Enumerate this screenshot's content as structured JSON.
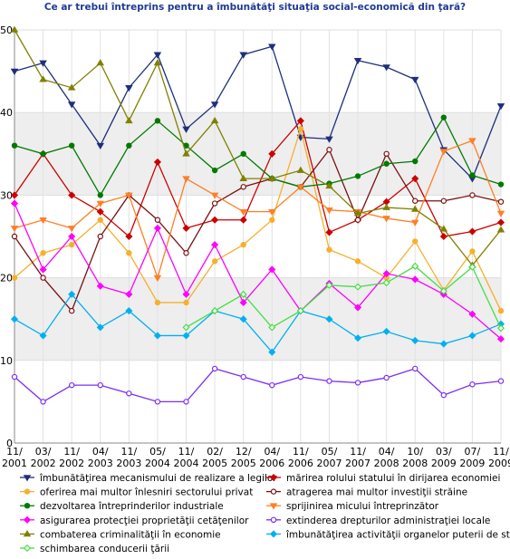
{
  "chart_data": {
    "type": "line",
    "title": "Ce ar trebui întreprins pentru a îmbunătăţi situaţia social-economică din ţară?",
    "ylim": [
      0,
      50
    ],
    "yticks": [
      0,
      10,
      20,
      30,
      40,
      50
    ],
    "grid": true,
    "legend_position": "bottom",
    "x_labels": [
      "11/\n2001",
      "03/\n2002",
      "11/\n2002",
      "04/\n2003",
      "11/\n2003",
      "05/\n2004",
      "11/\n2004",
      "02/\n2005",
      "12/\n2005",
      "04/\n2006",
      "11/\n2006",
      "05/\n2007",
      "11/\n2007",
      "04/\n2008",
      "10/\n2008",
      "03/\n2009",
      "07/\n2009",
      "11/\n2009"
    ],
    "series": [
      {
        "name": "îmbunătăţirea mecanismului de realizare a legilor",
        "color": "#1f2f7a",
        "marker": "tri-down",
        "values": [
          45,
          46,
          41,
          36,
          43,
          47,
          38,
          41,
          47,
          48,
          37,
          36.8,
          46.3,
          45.5,
          44,
          35.5,
          32,
          40.8
        ]
      },
      {
        "name": "mărirea rolului statului în dirijarea economiei",
        "color": "#cc0000",
        "marker": "diamond",
        "values": [
          30,
          35,
          30,
          28,
          25,
          34,
          26,
          27,
          27,
          35,
          39,
          25.5,
          27,
          29.2,
          32,
          25,
          25.6,
          26.7
        ]
      },
      {
        "name": "oferirea mai multor înlesniri sectorului privat",
        "color": "#f5b02e",
        "marker": "circle",
        "values": [
          20,
          23,
          24,
          27,
          23,
          17,
          17,
          22,
          24,
          27,
          38,
          23.4,
          22,
          20,
          24.4,
          18.5,
          23.2,
          16
        ]
      },
      {
        "name": "atragerea mai multor investiţii străine",
        "color": "#7a1010",
        "marker": "circle-open",
        "values": [
          25,
          20,
          16,
          25,
          30,
          27,
          23,
          29,
          31,
          32,
          31,
          35.5,
          27,
          35,
          29.3,
          29.3,
          30,
          29.2
        ]
      },
      {
        "name": "dezvoltarea întreprinderilor industriale",
        "color": "#007a00",
        "marker": "circle",
        "values": [
          36,
          35,
          36,
          30,
          36,
          39,
          36,
          33,
          35,
          32,
          31,
          31.4,
          32.3,
          33.8,
          34.1,
          39.4,
          32.4,
          31.3
        ]
      },
      {
        "name": "sprijinirea micului întreprinzător",
        "color": "#ff7f27",
        "marker": "tri-down",
        "values": [
          26,
          27,
          26,
          29,
          30,
          20,
          32,
          30,
          28,
          28,
          31,
          28.2,
          28,
          27.2,
          26.7,
          35.3,
          36.6,
          27.8
        ]
      },
      {
        "name": "asigurarea protecţiei proprietăţii cetăţenilor",
        "color": "#ff00ff",
        "marker": "diamond",
        "values": [
          29,
          21,
          25,
          19,
          18,
          26,
          18,
          24,
          17,
          21,
          16,
          19.3,
          16.4,
          20.5,
          19.8,
          18,
          15.6,
          12.6
        ]
      },
      {
        "name": "extinderea drepturilor administraţiei locale",
        "color": "#7b2ff2",
        "marker": "circle-open",
        "values": [
          8,
          5,
          7,
          7,
          6,
          5,
          5,
          9,
          8,
          7,
          8,
          7.5,
          7.3,
          7.9,
          9,
          5.8,
          7.1,
          7.5
        ]
      },
      {
        "name": "combaterea criminalităţii în economie",
        "color": "#808000",
        "marker": "triangle",
        "values": [
          50,
          44,
          43,
          46,
          39,
          46,
          35,
          39,
          32,
          32,
          33,
          31.1,
          27.8,
          28.5,
          28.3,
          25.9,
          21.5,
          25.8
        ]
      },
      {
        "name": "îmbunătăţirea activităţii organelor puterii de stat",
        "color": "#00b0f0",
        "marker": "diamond-filled",
        "values": [
          15,
          13,
          18,
          14,
          16,
          13,
          13,
          16,
          15,
          11,
          16,
          15,
          12.7,
          13.5,
          12.4,
          12,
          13,
          14.4
        ]
      },
      {
        "name": "schimbarea conducerii ţării",
        "color": "#44dd44",
        "marker": "diamond-open",
        "start_index": 6,
        "values": [
          14,
          16,
          18,
          14,
          16,
          19.1,
          18.9,
          19.4,
          21.4,
          18.4,
          21.3,
          13.9
        ]
      }
    ]
  }
}
